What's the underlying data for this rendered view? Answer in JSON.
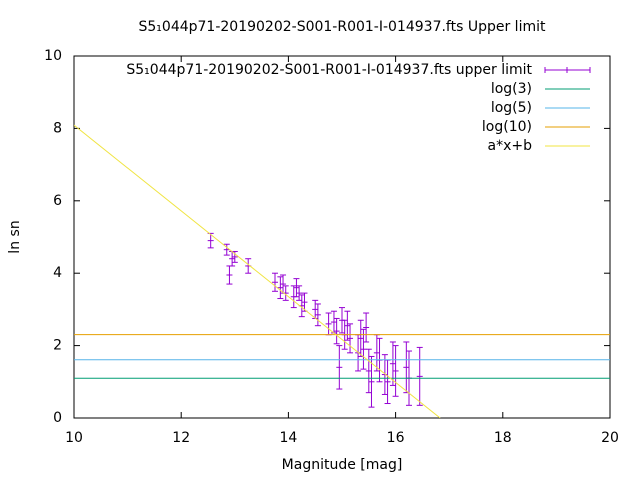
{
  "chart_data": {
    "type": "scatter",
    "title": "S5₁044p71-20190202-S001-R001-I-014937.fts Upper limit",
    "xlabel": "Magnitude [mag]",
    "ylabel": "ln sn",
    "xlim": [
      10,
      20
    ],
    "xticks": [
      10,
      12,
      14,
      16,
      18,
      20
    ],
    "ylim": [
      0,
      10
    ],
    "yticks": [
      0,
      2,
      4,
      6,
      8,
      10
    ],
    "legend": "top-right",
    "series": [
      {
        "name": "S5₁044p71-20190202-S001-R001-I-014937.fts upper limit",
        "color": "#9400d3",
        "style": "errorbars",
        "x": [
          12.55,
          12.85,
          12.9,
          12.95,
          13.0,
          13.25,
          13.75,
          13.85,
          13.9,
          13.95,
          14.1,
          14.15,
          14.2,
          14.25,
          14.3,
          14.5,
          14.55,
          14.75,
          14.85,
          14.9,
          14.95,
          15.0,
          15.05,
          15.1,
          15.15,
          15.3,
          15.35,
          15.4,
          15.45,
          15.5,
          15.55,
          15.65,
          15.7,
          15.8,
          15.85,
          15.95,
          16.0,
          16.2,
          16.25,
          16.45
        ],
        "values": [
          4.9,
          4.65,
          3.95,
          4.4,
          4.45,
          4.2,
          3.75,
          3.6,
          3.7,
          3.45,
          3.35,
          3.6,
          3.45,
          3.1,
          3.2,
          3.0,
          2.85,
          2.6,
          2.65,
          2.4,
          1.4,
          2.7,
          2.3,
          2.55,
          2.2,
          1.8,
          2.2,
          1.9,
          2.5,
          1.3,
          1.0,
          1.8,
          1.6,
          1.2,
          1.0,
          1.5,
          1.3,
          1.4,
          1.1,
          1.15
        ],
        "errors": [
          0.2,
          0.15,
          0.25,
          0.2,
          0.15,
          0.2,
          0.25,
          0.3,
          0.25,
          0.2,
          0.3,
          0.25,
          0.2,
          0.3,
          0.25,
          0.25,
          0.3,
          0.3,
          0.3,
          0.35,
          0.6,
          0.35,
          0.4,
          0.4,
          0.4,
          0.5,
          0.5,
          0.55,
          0.4,
          0.6,
          0.7,
          0.5,
          0.6,
          0.55,
          0.6,
          0.6,
          0.7,
          0.7,
          0.75,
          0.8
        ]
      },
      {
        "name": "log(3)",
        "color": "#009e73",
        "style": "line",
        "x": [
          10,
          20
        ],
        "values": [
          1.0986,
          1.0986
        ]
      },
      {
        "name": "log(5)",
        "color": "#56b4e9",
        "style": "line",
        "x": [
          10,
          20
        ],
        "values": [
          1.6094,
          1.6094
        ]
      },
      {
        "name": "log(10)",
        "color": "#e69f00",
        "style": "line",
        "x": [
          10,
          20
        ],
        "values": [
          2.3026,
          2.3026
        ]
      },
      {
        "name": "a*x+b",
        "color": "#f0e442",
        "style": "line",
        "x": [
          10,
          16.83
        ],
        "values": [
          8.09,
          0
        ]
      }
    ]
  }
}
